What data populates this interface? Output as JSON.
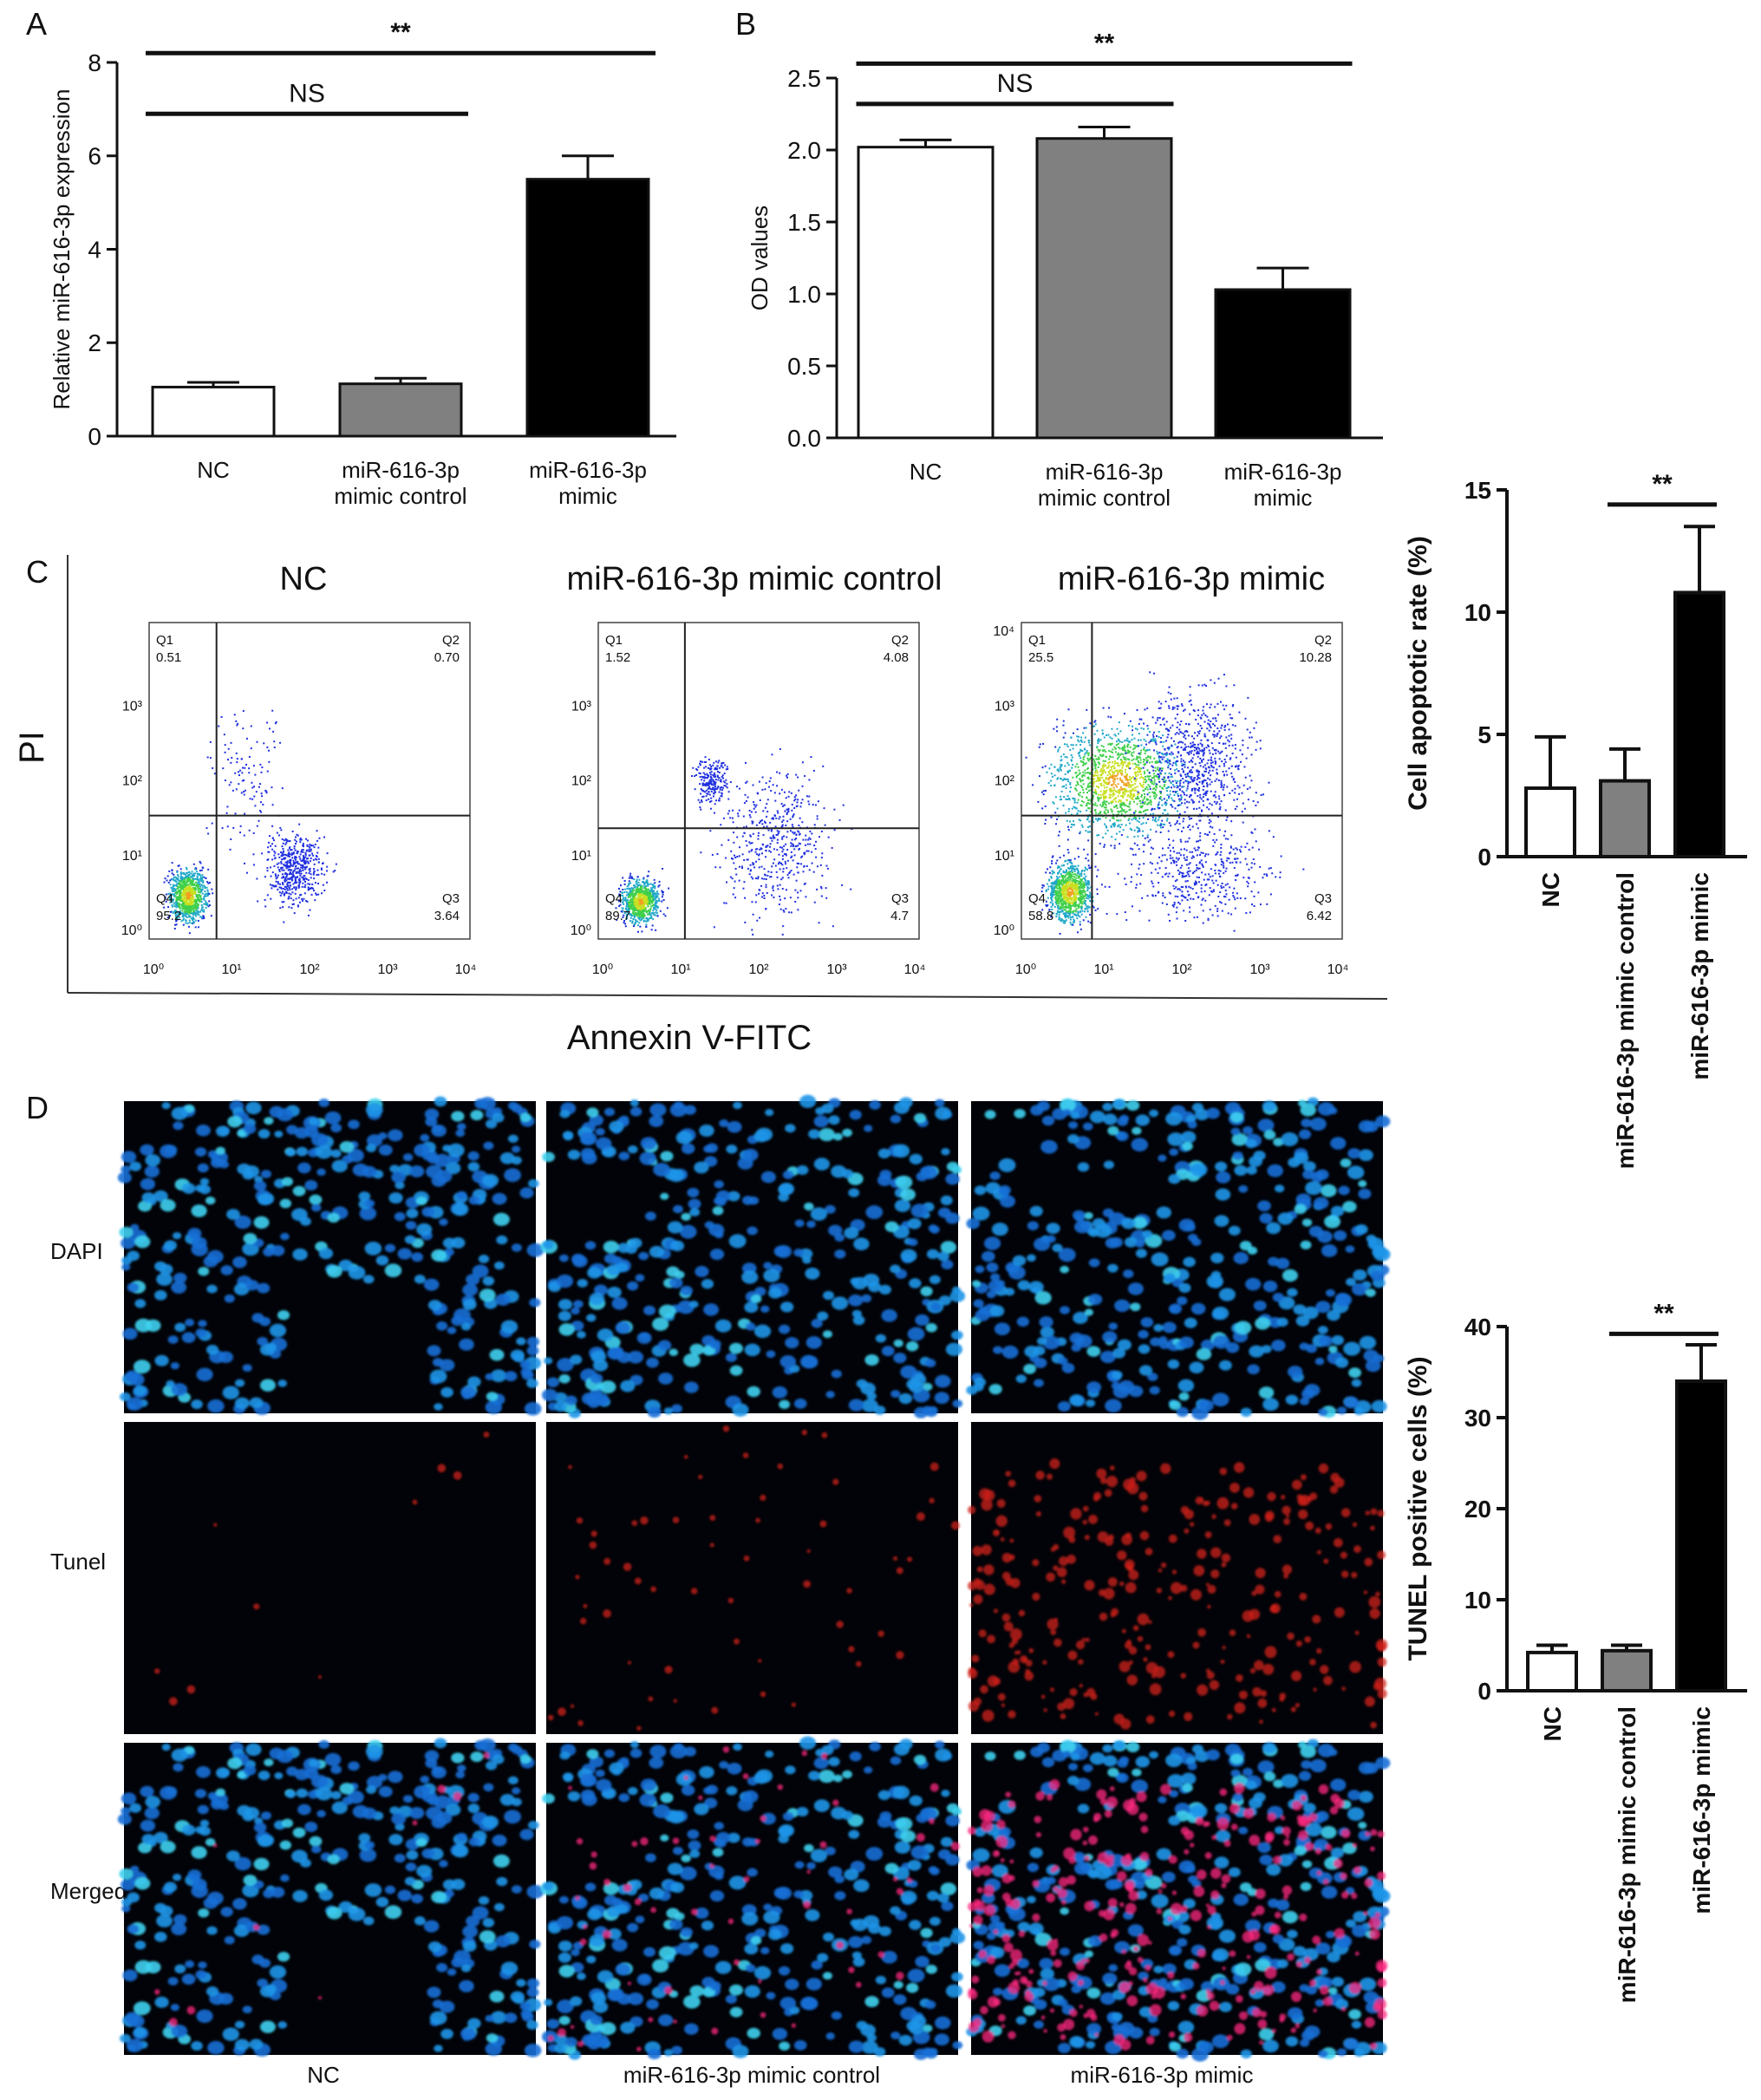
{
  "panels": {
    "A": "A",
    "B": "B",
    "C": "C",
    "D": "D"
  },
  "chart_data": [
    {
      "id": "A",
      "type": "bar",
      "categories": [
        [
          "NC"
        ],
        [
          "miR-616-3p",
          "mimic control"
        ],
        [
          "miR-616-3p",
          "mimic"
        ]
      ],
      "values": [
        1.05,
        1.12,
        5.5
      ],
      "errors": [
        0.1,
        0.12,
        0.5
      ],
      "colors": [
        "#ffffff",
        "#808080",
        "#000000"
      ],
      "ylabel": "Relative miR-616-3p expression",
      "ylim": [
        0,
        8
      ],
      "yticks": [
        "0",
        "2",
        "4",
        "6",
        "8"
      ],
      "yticks_values": [
        0,
        2,
        4,
        6,
        8
      ],
      "annotations": [
        {
          "label": "NS",
          "from": 0,
          "to": 1,
          "y": 6.9
        },
        {
          "label": "**",
          "from": 0,
          "to": 2,
          "y": 8.2
        }
      ]
    },
    {
      "id": "B",
      "type": "bar",
      "categories": [
        [
          "NC"
        ],
        [
          "miR-616-3p",
          "mimic control"
        ],
        [
          "miR-616-3p",
          "mimic"
        ]
      ],
      "values": [
        2.02,
        2.08,
        1.03
      ],
      "errors": [
        0.05,
        0.08,
        0.15
      ],
      "colors": [
        "#ffffff",
        "#808080",
        "#000000"
      ],
      "ylabel": "OD values",
      "ylim": [
        0,
        2.5
      ],
      "yticks": [
        "0.0",
        "0.5",
        "1.0",
        "1.5",
        "2.0",
        "2.5"
      ],
      "yticks_values": [
        0,
        0.5,
        1.0,
        1.5,
        2.0,
        2.5
      ],
      "annotations": [
        {
          "label": "NS",
          "from": 0,
          "to": 1,
          "y": 2.32
        },
        {
          "label": "**",
          "from": 0,
          "to": 2,
          "y": 2.6
        }
      ]
    },
    {
      "id": "C-bar",
      "type": "bar",
      "categories": [
        [
          "NC"
        ],
        [
          "miR-616-3p mimic control"
        ],
        [
          "miR-616-3p mimic"
        ]
      ],
      "values": [
        2.8,
        3.1,
        10.8
      ],
      "errors": [
        2.1,
        1.3,
        2.7
      ],
      "colors": [
        "#ffffff",
        "#808080",
        "#000000"
      ],
      "ylabel": "Cell apoptotic rate (%)",
      "ylim": [
        0,
        15
      ],
      "yticks": [
        "0",
        "5",
        "10",
        "15"
      ],
      "yticks_values": [
        0,
        5,
        10,
        15
      ],
      "annotations": [
        {
          "label": "**",
          "from": 1,
          "to": 2,
          "y": 14.4
        }
      ]
    },
    {
      "id": "D-bar",
      "type": "bar",
      "categories": [
        [
          "NC"
        ],
        [
          "miR-616-3p mimic control"
        ],
        [
          "miR-616-3p mimic"
        ]
      ],
      "values": [
        4.2,
        4.4,
        34.0
      ],
      "errors": [
        0.8,
        0.6,
        4.0
      ],
      "colors": [
        "#ffffff",
        "#808080",
        "#000000"
      ],
      "ylabel": "TUNEL positive cells (%)",
      "ylim": [
        0,
        40
      ],
      "yticks": [
        "0",
        "10",
        "20",
        "30",
        "40"
      ],
      "yticks_values": [
        0,
        10,
        20,
        30,
        40
      ],
      "annotations": [
        {
          "label": "**",
          "from": 1,
          "to": 2,
          "y": 39.2
        }
      ]
    }
  ],
  "flow": {
    "ylabel": "PI",
    "xlabel": "Annexin V-FITC",
    "plots": [
      {
        "title": "NC",
        "q1": "0.51",
        "q2": "0.70",
        "q3": "3.64",
        "q4": "95.2",
        "q1_label": "Q1",
        "q2_label": "Q2",
        "q3_label": "Q3",
        "q4_label": "Q4"
      },
      {
        "title": "miR-616-3p mimic control",
        "q1": "1.52",
        "q2": "4.08",
        "q3": "4.7",
        "q4": "89.7",
        "q1_label": "Q1",
        "q2_label": "Q2",
        "q3_label": "Q3",
        "q4_label": "Q4"
      },
      {
        "title": "miR-616-3p mimic",
        "q1": "25.5",
        "q2": "10.28",
        "q3": "6.42",
        "q4": "58.8",
        "q1_label": "Q1",
        "q2_label": "Q2",
        "q3_label": "Q3",
        "q4_label": "Q4"
      }
    ],
    "xticks": [
      "10⁰",
      "10¹",
      "10²",
      "10³",
      "10⁴"
    ],
    "yticks": [
      "10⁰",
      "10¹",
      "10²",
      "10³",
      "10⁴"
    ]
  },
  "microscopy": {
    "rows": [
      "DAPI",
      "Tunel",
      "Merged"
    ],
    "cols": [
      "NC",
      "miR-616-3p mimic control",
      "miR-616-3p mimic"
    ],
    "tunel_intensity": [
      0.02,
      0.12,
      0.6
    ]
  },
  "colors": {
    "blue": "#1e8fe0",
    "red": "#e02020",
    "axis": "#111111"
  }
}
